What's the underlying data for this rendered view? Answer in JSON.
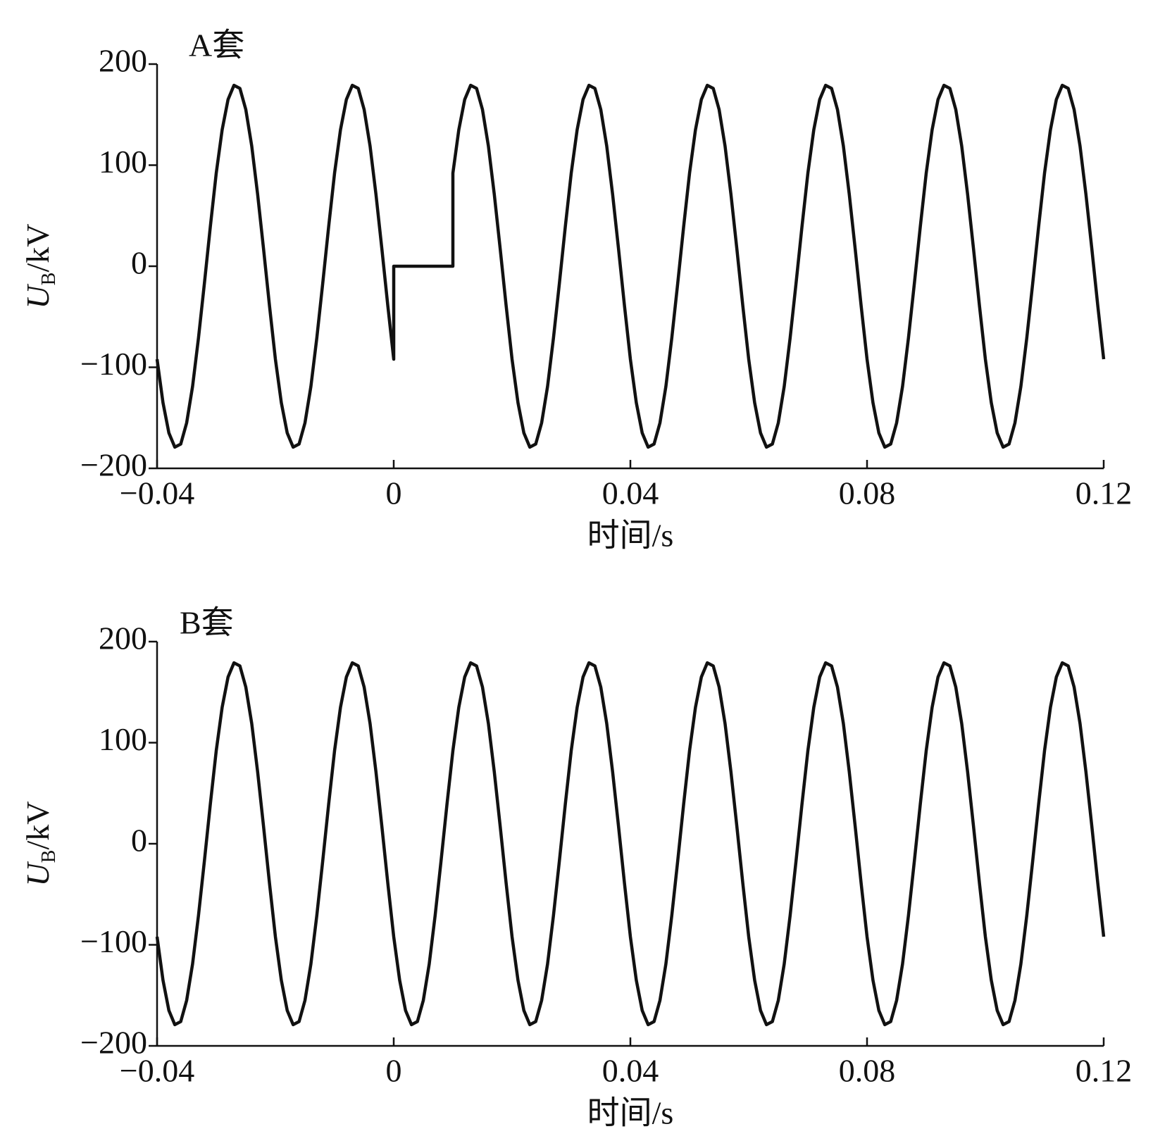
{
  "chart_data": [
    {
      "type": "line",
      "annotation": "A套",
      "x_label": "时间/s",
      "y_label": {
        "main": "U",
        "sub": "B",
        "rest": "/kV"
      },
      "color": "#111111",
      "xlim": [
        -0.04,
        0.12
      ],
      "ylim": [
        -200,
        200
      ],
      "xticks": [
        {
          "value": -0.04,
          "label": "−0.04"
        },
        0,
        0.04,
        0.08,
        0.12
      ],
      "yticks": [
        {
          "value": -200,
          "label": "−200"
        },
        {
          "value": -100,
          "label": "−100"
        },
        0,
        100,
        200
      ],
      "x": [
        -0.04,
        -0.039,
        -0.038,
        -0.037,
        -0.036,
        -0.035,
        -0.034,
        -0.033,
        -0.032,
        -0.031,
        -0.03,
        -0.029,
        -0.028,
        -0.027,
        -0.026,
        -0.025,
        -0.024,
        -0.023,
        -0.022,
        -0.021,
        -0.02,
        -0.019,
        -0.018,
        -0.017,
        -0.016,
        -0.015,
        -0.014,
        -0.013,
        -0.012,
        -0.011,
        -0.01,
        -0.009,
        -0.008,
        -0.007,
        -0.006,
        -0.005,
        -0.004,
        -0.003,
        -0.002,
        -0.001,
        0,
        0,
        0.01,
        0.01,
        0.011,
        0.012,
        0.013,
        0.014,
        0.015,
        0.016,
        0.017,
        0.018,
        0.019,
        0.02,
        0.021,
        0.022,
        0.023,
        0.024,
        0.025,
        0.026,
        0.027,
        0.028,
        0.029,
        0.03,
        0.031,
        0.032,
        0.033,
        0.034,
        0.035,
        0.036,
        0.037,
        0.038,
        0.039,
        0.04,
        0.041,
        0.042,
        0.043,
        0.044,
        0.045,
        0.046,
        0.047,
        0.048,
        0.049,
        0.05,
        0.051,
        0.052,
        0.053,
        0.054,
        0.055,
        0.056,
        0.057,
        0.058,
        0.059,
        0.06,
        0.061,
        0.062,
        0.063,
        0.064,
        0.065,
        0.066,
        0.067,
        0.068,
        0.069,
        0.07,
        0.071,
        0.072,
        0.073,
        0.074,
        0.075,
        0.076,
        0.077,
        0.078,
        0.079,
        0.08,
        0.081,
        0.082,
        0.083,
        0.084,
        0.085,
        0.086,
        0.087,
        0.088,
        0.089,
        0.09,
        0.091,
        0.092,
        0.093,
        0.094,
        0.095,
        0.096,
        0.097,
        0.098,
        0.099,
        0.1,
        0.101,
        0.102,
        0.103,
        0.104,
        0.105,
        0.106,
        0.107,
        0.108,
        0.109,
        0.11,
        0.111,
        0.112,
        0.113,
        0.114,
        0.115,
        0.116,
        0.117,
        0.118,
        0.119,
        0.12
      ],
      "values": [
        -92,
        -135,
        -165,
        -179,
        -176,
        -155,
        -119,
        -71,
        -17,
        39,
        92,
        135,
        165,
        179,
        176,
        155,
        119,
        71,
        17,
        -39,
        -92,
        -135,
        -165,
        -179,
        -176,
        -155,
        -119,
        -71,
        -17,
        39,
        92,
        135,
        165,
        179,
        176,
        155,
        119,
        71,
        17,
        -39,
        -92,
        0,
        0,
        92,
        135,
        165,
        179,
        176,
        155,
        119,
        71,
        17,
        -39,
        -92,
        -135,
        -165,
        -179,
        -176,
        -155,
        -119,
        -71,
        -17,
        39,
        92,
        135,
        165,
        179,
        176,
        155,
        119,
        71,
        17,
        -39,
        -92,
        -135,
        -165,
        -179,
        -176,
        -155,
        -119,
        -71,
        -17,
        39,
        92,
        135,
        165,
        179,
        176,
        155,
        119,
        71,
        17,
        -39,
        -92,
        -135,
        -165,
        -179,
        -176,
        -155,
        -119,
        -71,
        -17,
        39,
        92,
        135,
        165,
        179,
        176,
        155,
        119,
        71,
        17,
        -39,
        -92,
        -135,
        -165,
        -179,
        -176,
        -155,
        -119,
        -71,
        -17,
        39,
        92,
        135,
        165,
        179,
        176,
        155,
        119,
        71,
        17,
        -39,
        -92,
        -135,
        -165,
        -179,
        -176,
        -155,
        -119,
        -71,
        -17,
        39,
        92,
        135,
        165,
        179,
        176,
        155,
        119,
        71,
        17,
        -39,
        -92
      ]
    },
    {
      "type": "line",
      "annotation": "B套",
      "x_label": "时间/s",
      "y_label": {
        "main": "U",
        "sub": "B",
        "rest": "/kV"
      },
      "color": "#111111",
      "xlim": [
        -0.04,
        0.12
      ],
      "ylim": [
        -200,
        200
      ],
      "xticks": [
        {
          "value": -0.04,
          "label": "−0.04"
        },
        0,
        0.04,
        0.08,
        0.12
      ],
      "yticks": [
        {
          "value": -200,
          "label": "−200"
        },
        {
          "value": -100,
          "label": "−100"
        },
        0,
        100,
        200
      ],
      "x": [
        -0.04,
        -0.039,
        -0.038,
        -0.037,
        -0.036,
        -0.035,
        -0.034,
        -0.033,
        -0.032,
        -0.031,
        -0.03,
        -0.029,
        -0.028,
        -0.027,
        -0.026,
        -0.025,
        -0.024,
        -0.023,
        -0.022,
        -0.021,
        -0.02,
        -0.019,
        -0.018,
        -0.017,
        -0.016,
        -0.015,
        -0.014,
        -0.013,
        -0.012,
        -0.011,
        -0.01,
        -0.009,
        -0.008,
        -0.007,
        -0.006,
        -0.005,
        -0.004,
        -0.003,
        -0.002,
        -0.001,
        0,
        0.001,
        0.002,
        0.003,
        0.004,
        0.005,
        0.006,
        0.007,
        0.008,
        0.009,
        0.01,
        0.011,
        0.012,
        0.013,
        0.014,
        0.015,
        0.016,
        0.017,
        0.018,
        0.019,
        0.02,
        0.021,
        0.022,
        0.023,
        0.024,
        0.025,
        0.026,
        0.027,
        0.028,
        0.029,
        0.03,
        0.031,
        0.032,
        0.033,
        0.034,
        0.035,
        0.036,
        0.037,
        0.038,
        0.039,
        0.04,
        0.041,
        0.042,
        0.043,
        0.044,
        0.045,
        0.046,
        0.047,
        0.048,
        0.049,
        0.05,
        0.051,
        0.052,
        0.053,
        0.054,
        0.055,
        0.056,
        0.057,
        0.058,
        0.059,
        0.06,
        0.061,
        0.062,
        0.063,
        0.064,
        0.065,
        0.066,
        0.067,
        0.068,
        0.069,
        0.07,
        0.071,
        0.072,
        0.073,
        0.074,
        0.075,
        0.076,
        0.077,
        0.078,
        0.079,
        0.08,
        0.081,
        0.082,
        0.083,
        0.084,
        0.085,
        0.086,
        0.087,
        0.088,
        0.089,
        0.09,
        0.091,
        0.092,
        0.093,
        0.094,
        0.095,
        0.096,
        0.097,
        0.098,
        0.099,
        0.1,
        0.101,
        0.102,
        0.103,
        0.104,
        0.105,
        0.106,
        0.107,
        0.108,
        0.109,
        0.11,
        0.111,
        0.112,
        0.113,
        0.114,
        0.115,
        0.116,
        0.117,
        0.118,
        0.119,
        0.12
      ],
      "values": [
        -92,
        -135,
        -165,
        -179,
        -176,
        -155,
        -119,
        -71,
        -17,
        39,
        92,
        135,
        165,
        179,
        176,
        155,
        119,
        71,
        17,
        -39,
        -92,
        -135,
        -165,
        -179,
        -176,
        -155,
        -119,
        -71,
        -17,
        39,
        92,
        135,
        165,
        179,
        176,
        155,
        119,
        71,
        17,
        -39,
        -92,
        -135,
        -165,
        -179,
        -176,
        -155,
        -119,
        -71,
        -17,
        39,
        92,
        135,
        165,
        179,
        176,
        155,
        119,
        71,
        17,
        -39,
        -92,
        -135,
        -165,
        -179,
        -176,
        -155,
        -119,
        -71,
        -17,
        39,
        92,
        135,
        165,
        179,
        176,
        155,
        119,
        71,
        17,
        -39,
        -92,
        -135,
        -165,
        -179,
        -176,
        -155,
        -119,
        -71,
        -17,
        39,
        92,
        135,
        165,
        179,
        176,
        155,
        119,
        71,
        17,
        -39,
        -92,
        -135,
        -165,
        -179,
        -176,
        -155,
        -119,
        -71,
        -17,
        39,
        92,
        135,
        165,
        179,
        176,
        155,
        119,
        71,
        17,
        -39,
        -92,
        -135,
        -165,
        -179,
        -176,
        -155,
        -119,
        -71,
        -17,
        39,
        92,
        135,
        165,
        179,
        176,
        155,
        119,
        71,
        17,
        -39,
        -92,
        -135,
        -165,
        -179,
        -176,
        -155,
        -119,
        -71,
        -17,
        39,
        92,
        135,
        165,
        179,
        176,
        155,
        119,
        71,
        17,
        -39,
        -92
      ]
    }
  ]
}
